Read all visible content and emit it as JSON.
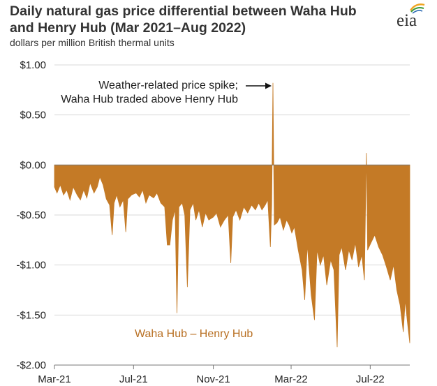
{
  "header": {
    "title_line1": "Daily natural gas price differential between Waha Hub",
    "title_line2": "and Henry Hub (Mar 2021–Aug 2022)",
    "subtitle": "dollars per million British thermal units",
    "logo_text": "eia"
  },
  "colors": {
    "area": "#C47A26",
    "gridline": "#d9d9d9",
    "axis": "#777777",
    "label": "#B86F22"
  },
  "chart_data": {
    "type": "area",
    "title": "Daily natural gas price differential between Waha Hub and Henry Hub (Mar 2021–Aug 2022)",
    "ylabel": "dollars per million British thermal units",
    "xlabel": "",
    "ylim": [
      -2.0,
      1.0
    ],
    "xlim": [
      "2021-03-01",
      "2022-08-31"
    ],
    "grid": "horizontal",
    "y_ticks": [
      1.0,
      0.5,
      0.0,
      -0.5,
      -1.0,
      -1.5,
      -2.0
    ],
    "y_tick_labels": [
      "$1.00",
      "$0.50",
      "$0.00",
      "-$0.50",
      "-$1.00",
      "-$1.50",
      "-$2.00"
    ],
    "x_ticks": [
      "2021-03-01",
      "2021-07-01",
      "2021-11-01",
      "2022-03-01",
      "2022-07-01"
    ],
    "x_tick_labels": [
      "Mar-21",
      "Jul-21",
      "Nov-21",
      "Mar-22",
      "Jul-22"
    ],
    "annotation": "Weather-related price spike;\nWaha Hub traded above Henry Hub",
    "series": [
      {
        "name": "Waha Hub – Henry Hub",
        "points": [
          [
            "2021-03-01",
            -0.22
          ],
          [
            "2021-03-05",
            -0.28
          ],
          [
            "2021-03-10",
            -0.2
          ],
          [
            "2021-03-15",
            -0.3
          ],
          [
            "2021-03-20",
            -0.25
          ],
          [
            "2021-03-25",
            -0.35
          ],
          [
            "2021-03-30",
            -0.22
          ],
          [
            "2021-04-05",
            -0.3
          ],
          [
            "2021-04-10",
            -0.35
          ],
          [
            "2021-04-15",
            -0.25
          ],
          [
            "2021-04-20",
            -0.33
          ],
          [
            "2021-04-25",
            -0.18
          ],
          [
            "2021-05-01",
            -0.28
          ],
          [
            "2021-05-06",
            -0.22
          ],
          [
            "2021-05-10",
            -0.12
          ],
          [
            "2021-05-15",
            -0.2
          ],
          [
            "2021-05-20",
            -0.34
          ],
          [
            "2021-05-25",
            -0.4
          ],
          [
            "2021-05-29",
            -0.7
          ],
          [
            "2021-06-01",
            -0.38
          ],
          [
            "2021-06-05",
            -0.3
          ],
          [
            "2021-06-10",
            -0.42
          ],
          [
            "2021-06-15",
            -0.35
          ],
          [
            "2021-06-19",
            -0.67
          ],
          [
            "2021-06-22",
            -0.34
          ],
          [
            "2021-06-28",
            -0.3
          ],
          [
            "2021-07-05",
            -0.28
          ],
          [
            "2021-07-10",
            -0.32
          ],
          [
            "2021-07-15",
            -0.25
          ],
          [
            "2021-07-20",
            -0.38
          ],
          [
            "2021-07-25",
            -0.3
          ],
          [
            "2021-08-01",
            -0.33
          ],
          [
            "2021-08-06",
            -0.28
          ],
          [
            "2021-08-12",
            -0.38
          ],
          [
            "2021-08-18",
            -0.42
          ],
          [
            "2021-08-22",
            -0.8
          ],
          [
            "2021-08-26",
            -0.8
          ],
          [
            "2021-08-30",
            -0.55
          ],
          [
            "2021-09-03",
            -0.45
          ],
          [
            "2021-09-06",
            -1.48
          ],
          [
            "2021-09-09",
            -0.42
          ],
          [
            "2021-09-14",
            -0.38
          ],
          [
            "2021-09-18",
            -0.5
          ],
          [
            "2021-09-22",
            -1.22
          ],
          [
            "2021-09-26",
            -0.45
          ],
          [
            "2021-10-01",
            -0.38
          ],
          [
            "2021-10-05",
            -0.55
          ],
          [
            "2021-10-10",
            -0.45
          ],
          [
            "2021-10-15",
            -0.62
          ],
          [
            "2021-10-20",
            -0.48
          ],
          [
            "2021-10-25",
            -0.55
          ],
          [
            "2021-11-01",
            -0.52
          ],
          [
            "2021-11-06",
            -0.48
          ],
          [
            "2021-11-12",
            -0.62
          ],
          [
            "2021-11-18",
            -0.55
          ],
          [
            "2021-11-24",
            -0.5
          ],
          [
            "2021-11-28",
            -0.98
          ],
          [
            "2021-12-01",
            -0.52
          ],
          [
            "2021-12-06",
            -0.45
          ],
          [
            "2021-12-12",
            -0.55
          ],
          [
            "2021-12-18",
            -0.42
          ],
          [
            "2021-12-24",
            -0.48
          ],
          [
            "2021-12-30",
            -0.4
          ],
          [
            "2022-01-05",
            -0.45
          ],
          [
            "2022-01-10",
            -0.38
          ],
          [
            "2022-01-15",
            -0.45
          ],
          [
            "2022-01-20",
            -0.4
          ],
          [
            "2022-01-24",
            -0.35
          ],
          [
            "2022-01-28",
            -0.82
          ],
          [
            "2022-01-30",
            -0.4
          ],
          [
            "2022-02-01",
            0.82
          ],
          [
            "2022-02-03",
            -0.6
          ],
          [
            "2022-02-07",
            -0.58
          ],
          [
            "2022-02-12",
            -0.52
          ],
          [
            "2022-02-17",
            -0.65
          ],
          [
            "2022-02-22",
            -0.55
          ],
          [
            "2022-02-26",
            -0.6
          ],
          [
            "2022-03-02",
            -0.68
          ],
          [
            "2022-03-06",
            -0.62
          ],
          [
            "2022-03-12",
            -0.85
          ],
          [
            "2022-03-18",
            -1.05
          ],
          [
            "2022-03-22",
            -1.35
          ],
          [
            "2022-03-26",
            -0.8
          ],
          [
            "2022-04-01",
            -1.3
          ],
          [
            "2022-04-06",
            -1.55
          ],
          [
            "2022-04-10",
            -0.85
          ],
          [
            "2022-04-15",
            -1.0
          ],
          [
            "2022-04-20",
            -0.9
          ],
          [
            "2022-04-25",
            -1.2
          ],
          [
            "2022-05-01",
            -0.95
          ],
          [
            "2022-05-06",
            -1.05
          ],
          [
            "2022-05-11",
            -1.82
          ],
          [
            "2022-05-14",
            -0.9
          ],
          [
            "2022-05-18",
            -0.82
          ],
          [
            "2022-05-24",
            -1.05
          ],
          [
            "2022-05-29",
            -0.85
          ],
          [
            "2022-06-03",
            -0.95
          ],
          [
            "2022-06-08",
            -0.78
          ],
          [
            "2022-06-13",
            -1.02
          ],
          [
            "2022-06-18",
            -0.9
          ],
          [
            "2022-06-22",
            -1.15
          ],
          [
            "2022-06-25",
            0.12
          ],
          [
            "2022-06-27",
            -0.85
          ],
          [
            "2022-07-02",
            -0.78
          ],
          [
            "2022-07-08",
            -0.7
          ],
          [
            "2022-07-14",
            -0.82
          ],
          [
            "2022-07-20",
            -0.9
          ],
          [
            "2022-07-26",
            -1.02
          ],
          [
            "2022-08-01",
            -1.15
          ],
          [
            "2022-08-06",
            -1.0
          ],
          [
            "2022-08-11",
            -1.25
          ],
          [
            "2022-08-16",
            -1.4
          ],
          [
            "2022-08-21",
            -1.67
          ],
          [
            "2022-08-24",
            -1.35
          ],
          [
            "2022-08-27",
            -1.55
          ],
          [
            "2022-08-31",
            -1.78
          ]
        ]
      }
    ]
  }
}
